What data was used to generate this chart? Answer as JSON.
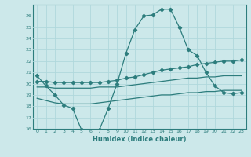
{
  "xlabel": "Humidex (Indice chaleur)",
  "x_values": [
    0,
    1,
    2,
    3,
    4,
    5,
    6,
    7,
    8,
    9,
    10,
    11,
    12,
    13,
    14,
    15,
    16,
    17,
    18,
    19,
    20,
    21,
    22,
    23
  ],
  "curve_x": [
    0,
    1,
    2,
    3,
    4,
    5,
    6,
    7,
    8,
    9,
    10,
    11,
    12,
    13,
    14,
    15,
    16,
    17,
    18,
    19,
    20,
    21,
    22,
    23
  ],
  "curve_y": [
    20.7,
    19.8,
    19.0,
    18.1,
    17.8,
    15.9,
    15.8,
    15.9,
    17.8,
    20.0,
    22.7,
    24.8,
    26.0,
    26.1,
    26.6,
    26.6,
    25.0,
    23.0,
    22.5,
    21.0,
    19.8,
    19.2,
    19.1,
    19.2
  ],
  "upper1_x": [
    0,
    1,
    2,
    3,
    4,
    5,
    6,
    7,
    8,
    9,
    10,
    11,
    12,
    13,
    14,
    15,
    16,
    17,
    18,
    19,
    20,
    21,
    22,
    23
  ],
  "upper1_y": [
    20.2,
    20.2,
    20.1,
    20.1,
    20.1,
    20.1,
    20.1,
    20.1,
    20.2,
    20.3,
    20.5,
    20.6,
    20.8,
    21.0,
    21.2,
    21.3,
    21.4,
    21.5,
    21.7,
    21.8,
    21.9,
    22.0,
    22.0,
    22.1
  ],
  "upper2_x": [
    0,
    1,
    2,
    3,
    4,
    5,
    6,
    7,
    8,
    9,
    10,
    11,
    12,
    13,
    14,
    15,
    16,
    17,
    18,
    19,
    20,
    21,
    22,
    23
  ],
  "upper2_y": [
    19.7,
    19.7,
    19.6,
    19.6,
    19.6,
    19.6,
    19.6,
    19.7,
    19.7,
    19.7,
    19.8,
    19.9,
    20.0,
    20.1,
    20.2,
    20.3,
    20.4,
    20.5,
    20.5,
    20.6,
    20.6,
    20.7,
    20.7,
    20.7
  ],
  "lower_x": [
    0,
    1,
    2,
    3,
    4,
    5,
    6,
    7,
    8,
    9,
    10,
    11,
    12,
    13,
    14,
    15,
    16,
    17,
    18,
    19,
    20,
    21,
    22,
    23
  ],
  "lower_y": [
    18.7,
    18.5,
    18.3,
    18.2,
    18.2,
    18.2,
    18.2,
    18.3,
    18.4,
    18.5,
    18.6,
    18.7,
    18.8,
    18.9,
    19.0,
    19.0,
    19.1,
    19.2,
    19.2,
    19.3,
    19.3,
    19.4,
    19.4,
    19.4
  ],
  "line_color": "#2d7d7d",
  "bg_color": "#cce8ea",
  "grid_color": "#b0d8dc",
  "ylim": [
    16,
    27
  ],
  "yticks": [
    16,
    17,
    18,
    19,
    20,
    21,
    22,
    23,
    24,
    25,
    26
  ],
  "xlim": [
    -0.5,
    23.5
  ]
}
